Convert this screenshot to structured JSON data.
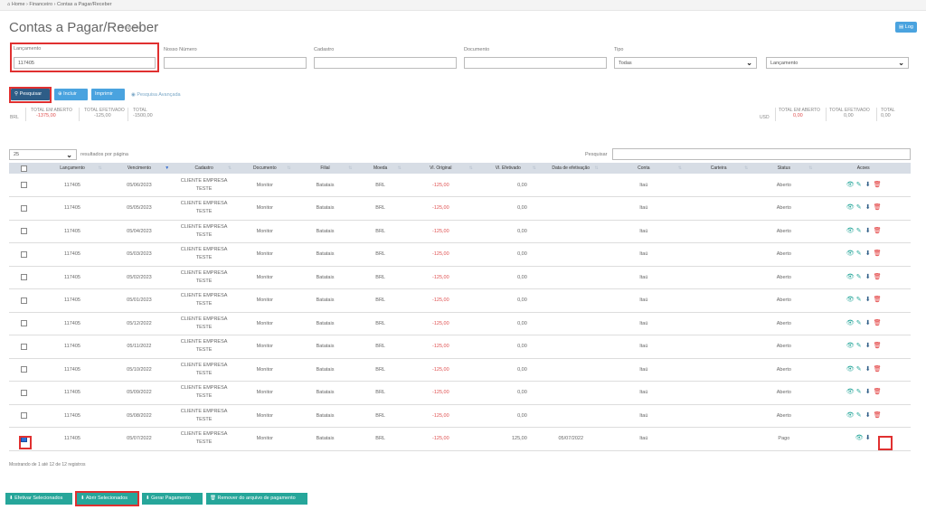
{
  "breadcrumb": {
    "home": "Home",
    "sep1": " › ",
    "financeiro": "Financeiro",
    "sep2": " › ",
    "current": "Contas a Pagar/Receber"
  },
  "page": {
    "title": "Contas a Pagar/Receber",
    "subtitle": "Pesquisar",
    "log_button": "Log"
  },
  "filters": {
    "lancamento_label": "Lançamento",
    "lancamento_value": "117405",
    "nosso_numero_label": "Nosso Número",
    "cadastro_label": "Cadastro",
    "documento_label": "Documento",
    "tipo_label": "Tipo",
    "tipo_value": "Todas",
    "date_field_value": "Lançamento"
  },
  "actions": {
    "pesquisar": "Pesquisar",
    "incluir": "Incluir",
    "imprimir": "Imprimir",
    "pesquisa_avancada": "Pesquisa Avançada"
  },
  "totals_left": {
    "currency": "BRL",
    "aberto_label": "TOTAL EM ABERTO",
    "aberto_value": "-1375,00",
    "efetivado_label": "TOTAL EFETIVADO",
    "efetivado_value": "-125,00",
    "total_label": "TOTAL",
    "total_value": "-1500,00"
  },
  "totals_right": {
    "currency": "USD",
    "aberto_label": "TOTAL EM ABERTO",
    "aberto_value": "0,00",
    "efetivado_label": "TOTAL EFETIVADO",
    "efetivado_value": "0,00",
    "total_label": "TOTAL",
    "total_value": "0,00"
  },
  "table_controls": {
    "page_size": "25",
    "page_size_label": "resultados por página",
    "search_label": "Pesquisar"
  },
  "columns": [
    "Lançamento",
    "Vencimento",
    "Cadastro",
    "Documento",
    "Filial",
    "Moeda",
    "Vl. Original",
    "Vl. Efetivado",
    "Data de efetivação",
    "Conta",
    "Carteira",
    "Status",
    "Acoes"
  ],
  "rows": [
    {
      "lanc": "117405",
      "venc": "05/06/2023",
      "cad": "CLIENTE EMPRESA TESTE",
      "doc": "Monitor",
      "filial": "Batatais",
      "moeda": "BRL",
      "orig": "-125,00",
      "efet": "0,00",
      "data": "",
      "conta": "Itaú",
      "carteira": "",
      "status": "Aberto",
      "checked": false
    },
    {
      "lanc": "117405",
      "venc": "05/05/2023",
      "cad": "CLIENTE EMPRESA TESTE",
      "doc": "Monitor",
      "filial": "Batatais",
      "moeda": "BRL",
      "orig": "-125,00",
      "efet": "0,00",
      "data": "",
      "conta": "Itaú",
      "carteira": "",
      "status": "Aberto",
      "checked": false
    },
    {
      "lanc": "117405",
      "venc": "05/04/2023",
      "cad": "CLIENTE EMPRESA TESTE",
      "doc": "Monitor",
      "filial": "Batatais",
      "moeda": "BRL",
      "orig": "-125,00",
      "efet": "0,00",
      "data": "",
      "conta": "Itaú",
      "carteira": "",
      "status": "Aberto",
      "checked": false
    },
    {
      "lanc": "117405",
      "venc": "05/03/2023",
      "cad": "CLIENTE EMPRESA TESTE",
      "doc": "Monitor",
      "filial": "Batatais",
      "moeda": "BRL",
      "orig": "-125,00",
      "efet": "0,00",
      "data": "",
      "conta": "Itaú",
      "carteira": "",
      "status": "Aberto",
      "checked": false
    },
    {
      "lanc": "117405",
      "venc": "05/02/2023",
      "cad": "CLIENTE EMPRESA TESTE",
      "doc": "Monitor",
      "filial": "Batatais",
      "moeda": "BRL",
      "orig": "-125,00",
      "efet": "0,00",
      "data": "",
      "conta": "Itaú",
      "carteira": "",
      "status": "Aberto",
      "checked": false
    },
    {
      "lanc": "117405",
      "venc": "05/01/2023",
      "cad": "CLIENTE EMPRESA TESTE",
      "doc": "Monitor",
      "filial": "Batatais",
      "moeda": "BRL",
      "orig": "-125,00",
      "efet": "0,00",
      "data": "",
      "conta": "Itaú",
      "carteira": "",
      "status": "Aberto",
      "checked": false
    },
    {
      "lanc": "117405",
      "venc": "05/12/2022",
      "cad": "CLIENTE EMPRESA TESTE",
      "doc": "Monitor",
      "filial": "Batatais",
      "moeda": "BRL",
      "orig": "-125,00",
      "efet": "0,00",
      "data": "",
      "conta": "Itaú",
      "carteira": "",
      "status": "Aberto",
      "checked": false
    },
    {
      "lanc": "117405",
      "venc": "05/11/2022",
      "cad": "CLIENTE EMPRESA TESTE",
      "doc": "Monitor",
      "filial": "Batatais",
      "moeda": "BRL",
      "orig": "-125,00",
      "efet": "0,00",
      "data": "",
      "conta": "Itaú",
      "carteira": "",
      "status": "Aberto",
      "checked": false
    },
    {
      "lanc": "117405",
      "venc": "05/10/2022",
      "cad": "CLIENTE EMPRESA TESTE",
      "doc": "Monitor",
      "filial": "Batatais",
      "moeda": "BRL",
      "orig": "-125,00",
      "efet": "0,00",
      "data": "",
      "conta": "Itaú",
      "carteira": "",
      "status": "Aberto",
      "checked": false
    },
    {
      "lanc": "117405",
      "venc": "05/09/2022",
      "cad": "CLIENTE EMPRESA TESTE",
      "doc": "Monitor",
      "filial": "Batatais",
      "moeda": "BRL",
      "orig": "-125,00",
      "efet": "0,00",
      "data": "",
      "conta": "Itaú",
      "carteira": "",
      "status": "Aberto",
      "checked": false
    },
    {
      "lanc": "117405",
      "venc": "05/08/2022",
      "cad": "CLIENTE EMPRESA TESTE",
      "doc": "Monitor",
      "filial": "Batatais",
      "moeda": "BRL",
      "orig": "-125,00",
      "efet": "0,00",
      "data": "",
      "conta": "Itaú",
      "carteira": "",
      "status": "Aberto",
      "checked": false
    },
    {
      "lanc": "117405",
      "venc": "05/07/2022",
      "cad": "CLIENTE EMPRESA TESTE",
      "doc": "Monitor",
      "filial": "Batatais",
      "moeda": "BRL",
      "orig": "-125,00",
      "efet": "125,00",
      "data": "05/07/2022",
      "conta": "Itaú",
      "carteira": "",
      "status": "Pago",
      "checked": true
    }
  ],
  "pagination_info": "Mostrando de 1 até 12 de 12 registros",
  "footer": {
    "efetivar": "Efetivar Selecionados",
    "abrir": "Abrir Selecionados",
    "gerar": "Gerar Pagamento",
    "remover": "Remover do arquivo de pagamento"
  },
  "colors": {
    "accent": "#26a69a",
    "primary": "#2e5d87",
    "highlight": "#e03030"
  }
}
